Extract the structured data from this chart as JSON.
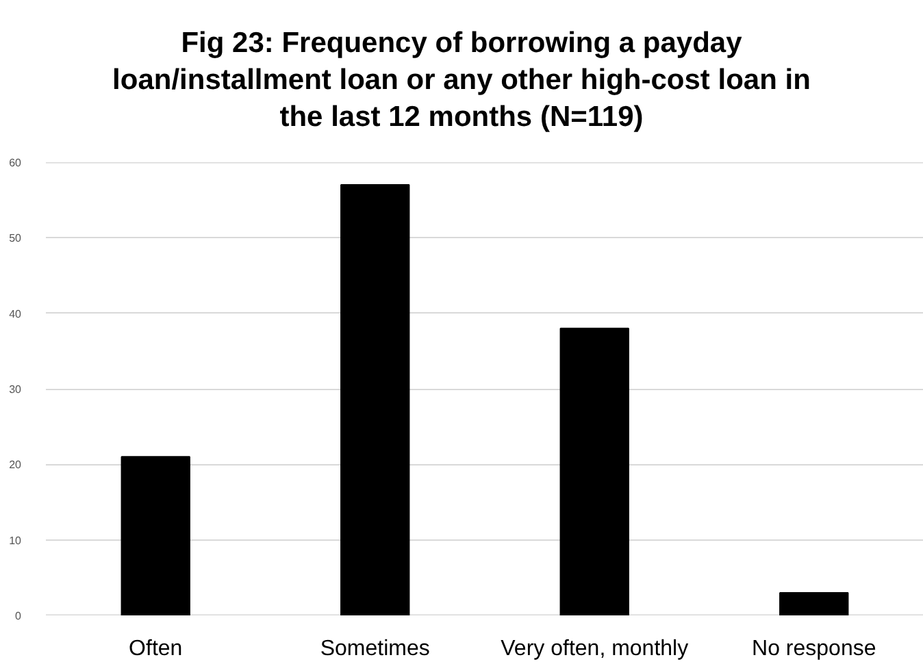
{
  "chart_data": {
    "type": "bar",
    "title": "Fig 23: Frequency of borrowing a payday loan/installment loan or any other high-cost loan in the last 12 months (N=119)",
    "categories": [
      "Often",
      "Sometimes",
      "Very often, monthly",
      "No response"
    ],
    "values": [
      21,
      57,
      38,
      3
    ],
    "color": "#000000",
    "ylim": [
      0,
      60
    ],
    "yticks": [
      0,
      10,
      20,
      30,
      40,
      50,
      60
    ],
    "grid": "y"
  }
}
